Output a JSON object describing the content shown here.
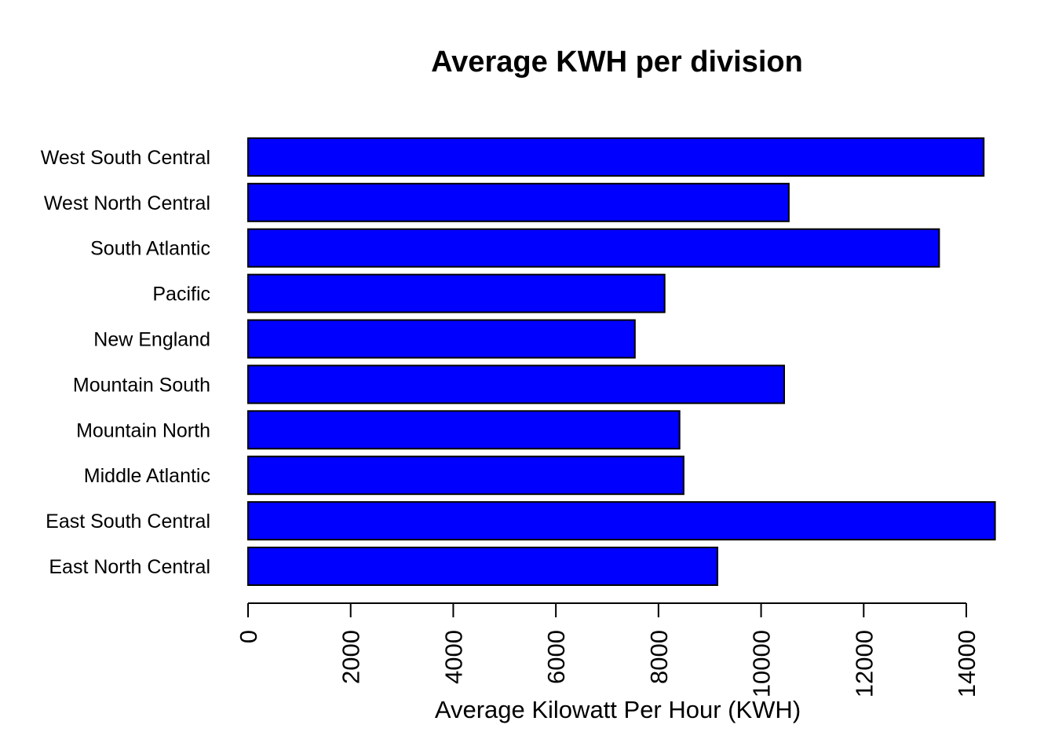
{
  "chart_data": {
    "type": "bar",
    "orientation": "horizontal",
    "title": "Average KWH per division",
    "xlabel": "Average Kilowatt Per Hour (KWH)",
    "ylabel": "",
    "categories": [
      "East North Central",
      "East South Central",
      "Middle Atlantic",
      "Mountain North",
      "Mountain South",
      "New England",
      "Pacific",
      "South Atlantic",
      "West North Central",
      "West South Central"
    ],
    "values": [
      9150,
      14560,
      8490,
      8410,
      10450,
      7540,
      8120,
      13470,
      10540,
      14340
    ],
    "xlim": [
      0,
      14560
    ],
    "ticks": [
      0,
      2000,
      4000,
      6000,
      8000,
      10000,
      12000,
      14000
    ],
    "tick_labels": [
      "0",
      "2000",
      "4000",
      "6000",
      "8000",
      "10000",
      "12000",
      "14000"
    ],
    "bar_color": "#0000ff",
    "bar_edge_color": "#000000",
    "grid": false,
    "legend": "none"
  }
}
